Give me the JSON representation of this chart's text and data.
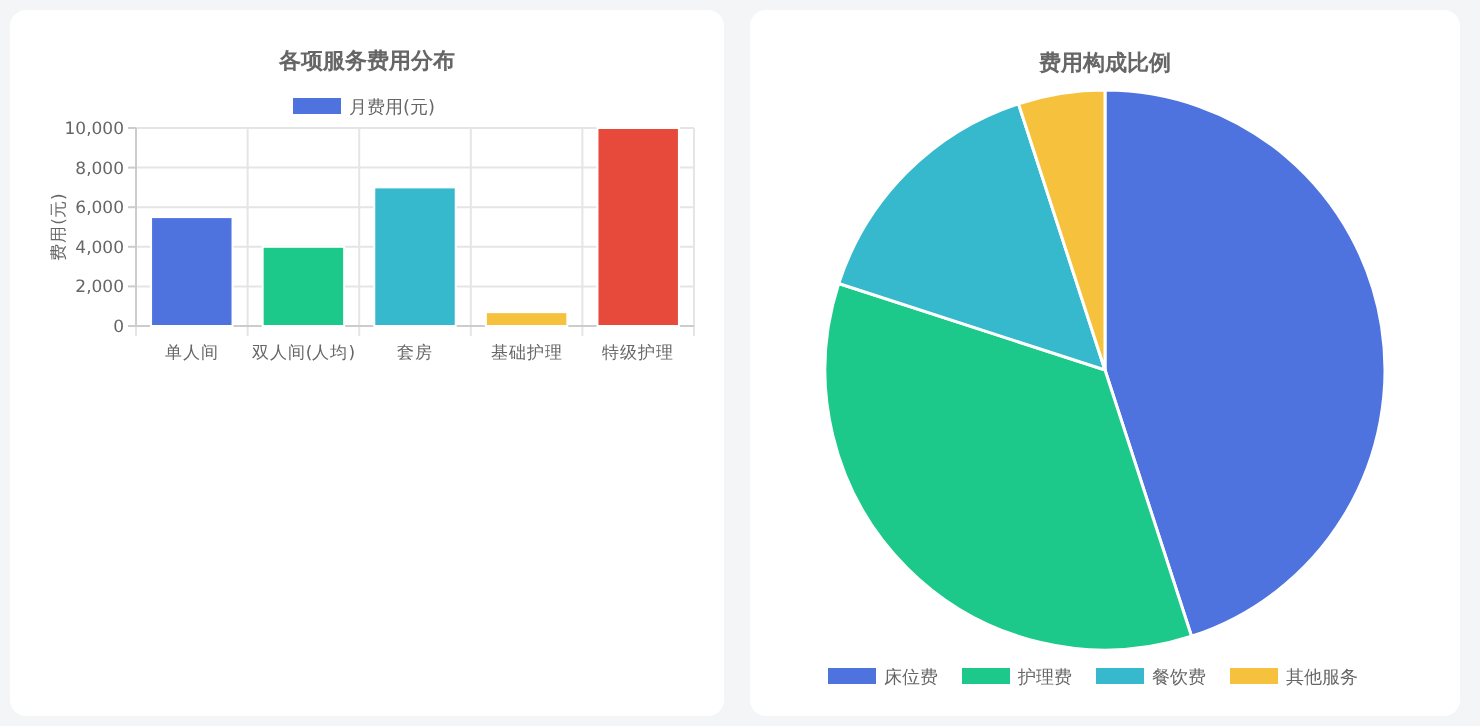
{
  "chart_data": [
    {
      "type": "bar",
      "title": "各项服务费用分布",
      "ylabel": "费用(元)",
      "categories": [
        "单人间",
        "双人间(人均)",
        "套房",
        "基础护理",
        "特级护理"
      ],
      "series": [
        {
          "name": "月费用(元)",
          "color": "#4e73df",
          "colors": [
            "#4e73df",
            "#1cc88a",
            "#36b9cc",
            "#f6c23e",
            "#e74a3b"
          ],
          "values": [
            5500,
            4000,
            7000,
            700,
            10000
          ]
        }
      ],
      "ylim": [
        0,
        10000
      ],
      "yticks": [
        {
          "value": 0,
          "label": "0"
        },
        {
          "value": 2000,
          "label": "2,000"
        },
        {
          "value": 4000,
          "label": "4,000"
        },
        {
          "value": 6000,
          "label": "6,000"
        },
        {
          "value": 8000,
          "label": "8,000"
        },
        {
          "value": 10000,
          "label": "10,000"
        }
      ],
      "grid": true,
      "legend": "top"
    },
    {
      "type": "pie",
      "title": "费用构成比例",
      "categories": [
        "床位费",
        "护理费",
        "餐饮费",
        "其他服务"
      ],
      "values": [
        45,
        35,
        15,
        5
      ],
      "colors": [
        "#4e73df",
        "#1cc88a",
        "#36b9cc",
        "#f6c23e"
      ],
      "legend": "bottom"
    }
  ]
}
